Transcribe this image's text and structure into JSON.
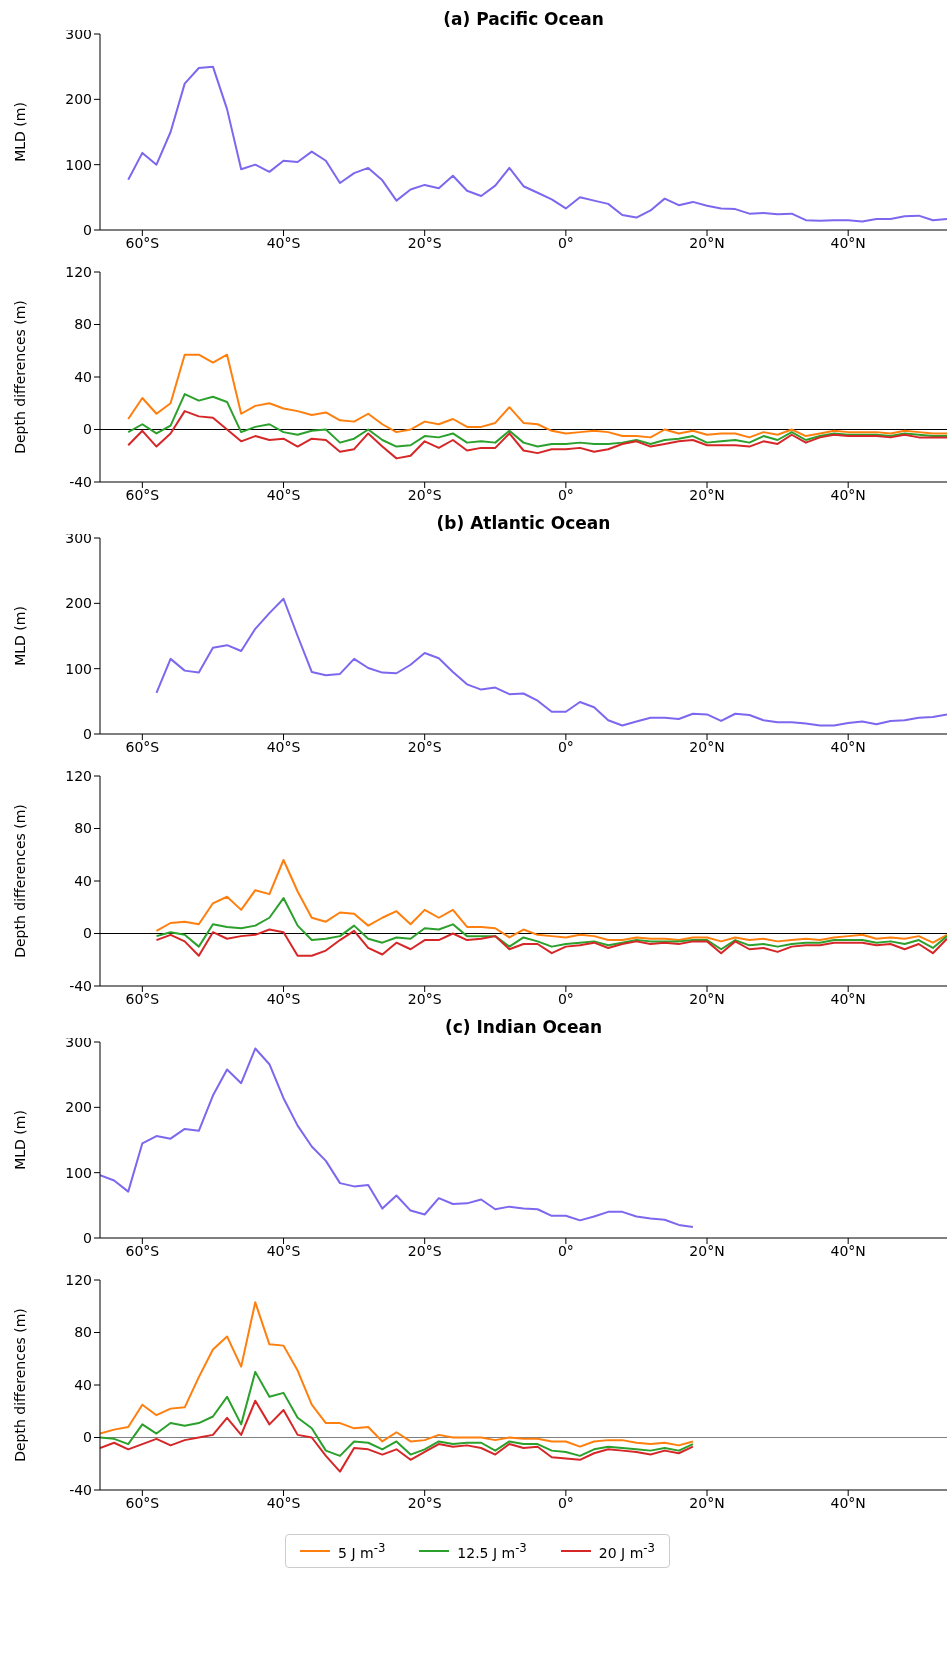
{
  "chart_data": [
    {
      "type": "line",
      "title": "(a) Pacific Ocean",
      "ylabel": "MLD (m)",
      "xlim": [
        -66,
        54
      ],
      "xticks": [
        {
          "value": -60,
          "label": "60°S"
        },
        {
          "value": -40,
          "label": "40°S"
        },
        {
          "value": -20,
          "label": "20°S"
        },
        {
          "value": 0,
          "label": "0°"
        },
        {
          "value": 20,
          "label": "20°N"
        },
        {
          "value": 40,
          "label": "40°N"
        }
      ],
      "ylim": [
        0,
        300
      ],
      "yticks": [
        0,
        100,
        200,
        300
      ],
      "x": [
        -62,
        -60,
        -58,
        -56,
        -54,
        -52,
        -50,
        -48,
        -46,
        -44,
        -42,
        -40,
        -38,
        -36,
        -34,
        -32,
        -30,
        -28,
        -26,
        -24,
        -22,
        -20,
        -18,
        -16,
        -14,
        -12,
        -10,
        -8,
        -6,
        -4,
        -2,
        0,
        2,
        4,
        6,
        8,
        10,
        12,
        14,
        16,
        18,
        20,
        22,
        24,
        26,
        28,
        30,
        32,
        34,
        36,
        38,
        40,
        42,
        44,
        46,
        48,
        50,
        52,
        54
      ],
      "series": [
        {
          "color": "#7b68ee",
          "values": [
            77,
            118,
            100,
            150,
            224,
            248,
            250,
            185,
            93,
            100,
            89,
            106,
            104,
            120,
            106,
            72,
            87,
            95,
            76,
            45,
            62,
            69,
            64,
            83,
            60,
            52,
            68,
            95,
            67,
            57,
            47,
            33,
            50,
            45,
            40,
            23,
            19,
            30,
            48,
            38,
            43,
            37,
            33,
            32,
            25,
            26,
            24,
            25,
            15,
            14,
            15,
            15,
            13,
            17,
            17,
            21,
            22,
            15,
            17
          ]
        }
      ]
    },
    {
      "type": "line",
      "ylabel": "Depth differences (m)",
      "xlim": [
        -66,
        54
      ],
      "xticks": [
        {
          "value": -60,
          "label": "60°S"
        },
        {
          "value": -40,
          "label": "40°S"
        },
        {
          "value": -20,
          "label": "20°S"
        },
        {
          "value": 0,
          "label": "0°"
        },
        {
          "value": 20,
          "label": "20°N"
        },
        {
          "value": 40,
          "label": "40°N"
        }
      ],
      "ylim": [
        -40,
        120
      ],
      "yticks": [
        -40,
        0,
        40,
        80,
        120
      ],
      "ref_lines": [
        {
          "axis": "y",
          "value": 0,
          "color": "#000000"
        }
      ],
      "x": [
        -62,
        -60,
        -58,
        -56,
        -54,
        -52,
        -50,
        -48,
        -46,
        -44,
        -42,
        -40,
        -38,
        -36,
        -34,
        -32,
        -30,
        -28,
        -26,
        -24,
        -22,
        -20,
        -18,
        -16,
        -14,
        -12,
        -10,
        -8,
        -6,
        -4,
        -2,
        0,
        2,
        4,
        6,
        8,
        10,
        12,
        14,
        16,
        18,
        20,
        22,
        24,
        26,
        28,
        30,
        32,
        34,
        36,
        38,
        40,
        42,
        44,
        46,
        48,
        50,
        52,
        54
      ],
      "series": [
        {
          "color": "#ff7f0e",
          "values": [
            8,
            24,
            12,
            20,
            57,
            57,
            51,
            57,
            12,
            18,
            20,
            16,
            14,
            11,
            13,
            7,
            6,
            12,
            4,
            -2,
            0,
            6,
            4,
            8,
            2,
            2,
            5,
            17,
            5,
            4,
            -1,
            -3,
            -2,
            -1,
            -2,
            -5,
            -5,
            -6,
            0,
            -3,
            -1,
            -4,
            -3,
            -3,
            -6,
            -2,
            -4,
            0,
            -5,
            -3,
            -1,
            -2,
            -2,
            -2,
            -3,
            -1,
            -2,
            -3,
            -3
          ]
        },
        {
          "color": "#2ca02c",
          "values": [
            -2,
            4,
            -3,
            3,
            27,
            22,
            25,
            21,
            -2,
            2,
            4,
            -2,
            -4,
            -1,
            0,
            -10,
            -7,
            0,
            -8,
            -13,
            -12,
            -5,
            -6,
            -3,
            -10,
            -9,
            -10,
            -1,
            -10,
            -13,
            -11,
            -11,
            -10,
            -11,
            -11,
            -10,
            -8,
            -11,
            -8,
            -7,
            -5,
            -10,
            -9,
            -8,
            -10,
            -5,
            -8,
            -2,
            -8,
            -5,
            -3,
            -4,
            -4,
            -4,
            -5,
            -3,
            -4,
            -5,
            -5
          ]
        },
        {
          "color": "#d62728",
          "values": [
            -12,
            -1,
            -13,
            -3,
            14,
            10,
            9,
            0,
            -9,
            -5,
            -8,
            -7,
            -13,
            -7,
            -8,
            -17,
            -15,
            -3,
            -13,
            -22,
            -20,
            -9,
            -14,
            -8,
            -16,
            -14,
            -14,
            -3,
            -16,
            -18,
            -15,
            -15,
            -14,
            -17,
            -15,
            -11,
            -9,
            -13,
            -11,
            -9,
            -8,
            -12,
            -12,
            -12,
            -13,
            -9,
            -11,
            -4,
            -10,
            -6,
            -4,
            -5,
            -5,
            -5,
            -6,
            -4,
            -6,
            -6,
            -6
          ]
        }
      ]
    },
    {
      "type": "line",
      "title": "(b) Atlantic Ocean",
      "ylabel": "MLD (m)",
      "xlim": [
        -66,
        54
      ],
      "xticks": [
        {
          "value": -60,
          "label": "60°S"
        },
        {
          "value": -40,
          "label": "40°S"
        },
        {
          "value": -20,
          "label": "20°S"
        },
        {
          "value": 0,
          "label": "0°"
        },
        {
          "value": 20,
          "label": "20°N"
        },
        {
          "value": 40,
          "label": "40°N"
        }
      ],
      "ylim": [
        0,
        300
      ],
      "yticks": [
        0,
        100,
        200,
        300
      ],
      "x": [
        -58,
        -56,
        -54,
        -52,
        -50,
        -48,
        -46,
        -44,
        -42,
        -40,
        -38,
        -36,
        -34,
        -32,
        -30,
        -28,
        -26,
        -24,
        -22,
        -20,
        -18,
        -16,
        -14,
        -12,
        -10,
        -8,
        -6,
        -4,
        -2,
        0,
        2,
        4,
        6,
        8,
        10,
        12,
        14,
        16,
        18,
        20,
        22,
        24,
        26,
        28,
        30,
        32,
        34,
        36,
        38,
        40,
        42,
        44,
        46,
        48,
        50,
        52,
        54
      ],
      "series": [
        {
          "color": "#7b68ee",
          "values": [
            63,
            115,
            97,
            94,
            132,
            136,
            127,
            161,
            185,
            207,
            150,
            95,
            90,
            92,
            115,
            101,
            94,
            93,
            106,
            124,
            116,
            95,
            76,
            68,
            71,
            61,
            62,
            51,
            34,
            34,
            49,
            41,
            21,
            13,
            19,
            25,
            25,
            23,
            31,
            30,
            20,
            31,
            29,
            21,
            18,
            18,
            16,
            13,
            13,
            17,
            19,
            15,
            20,
            21,
            25,
            26,
            30
          ]
        }
      ]
    },
    {
      "type": "line",
      "ylabel": "Depth differences (m)",
      "xlim": [
        -66,
        54
      ],
      "xticks": [
        {
          "value": -60,
          "label": "60°S"
        },
        {
          "value": -40,
          "label": "40°S"
        },
        {
          "value": -20,
          "label": "20°S"
        },
        {
          "value": 0,
          "label": "0°"
        },
        {
          "value": 20,
          "label": "20°N"
        },
        {
          "value": 40,
          "label": "40°N"
        }
      ],
      "ylim": [
        -40,
        120
      ],
      "yticks": [
        -40,
        0,
        40,
        80,
        120
      ],
      "ref_lines": [
        {
          "axis": "y",
          "value": 0,
          "color": "#000000"
        }
      ],
      "x": [
        -58,
        -56,
        -54,
        -52,
        -50,
        -48,
        -46,
        -44,
        -42,
        -40,
        -38,
        -36,
        -34,
        -32,
        -30,
        -28,
        -26,
        -24,
        -22,
        -20,
        -18,
        -16,
        -14,
        -12,
        -10,
        -8,
        -6,
        -4,
        -2,
        0,
        2,
        4,
        6,
        8,
        10,
        12,
        14,
        16,
        18,
        20,
        22,
        24,
        26,
        28,
        30,
        32,
        34,
        36,
        38,
        40,
        42,
        44,
        46,
        48,
        50,
        52,
        54
      ],
      "series": [
        {
          "color": "#ff7f0e",
          "values": [
            2,
            8,
            9,
            7,
            23,
            28,
            18,
            33,
            30,
            56,
            32,
            12,
            9,
            16,
            15,
            6,
            12,
            17,
            7,
            18,
            12,
            18,
            5,
            5,
            4,
            -3,
            3,
            -1,
            -2,
            -3,
            -1,
            -2,
            -5,
            -5,
            -3,
            -4,
            -4,
            -5,
            -3,
            -3,
            -6,
            -3,
            -5,
            -4,
            -6,
            -5,
            -4,
            -5,
            -3,
            -2,
            -1,
            -4,
            -3,
            -4,
            -2,
            -7,
            -1
          ]
        },
        {
          "color": "#2ca02c",
          "values": [
            -2,
            1,
            -1,
            -10,
            7,
            5,
            4,
            6,
            12,
            27,
            6,
            -5,
            -4,
            -2,
            6,
            -4,
            -7,
            -3,
            -4,
            4,
            3,
            7,
            -2,
            -2,
            -2,
            -10,
            -3,
            -6,
            -10,
            -8,
            -7,
            -6,
            -9,
            -7,
            -5,
            -6,
            -6,
            -6,
            -5,
            -5,
            -12,
            -5,
            -9,
            -8,
            -10,
            -8,
            -7,
            -7,
            -5,
            -5,
            -5,
            -7,
            -6,
            -8,
            -5,
            -11,
            -2
          ]
        },
        {
          "color": "#d62728",
          "values": [
            -5,
            -1,
            -6,
            -17,
            1,
            -4,
            -2,
            -1,
            3,
            1,
            -17,
            -17,
            -13,
            -5,
            2,
            -11,
            -16,
            -7,
            -12,
            -5,
            -5,
            0,
            -5,
            -4,
            -2,
            -12,
            -8,
            -8,
            -15,
            -10,
            -9,
            -7,
            -11,
            -8,
            -6,
            -8,
            -7,
            -8,
            -6,
            -6,
            -15,
            -6,
            -12,
            -11,
            -14,
            -10,
            -9,
            -9,
            -7,
            -7,
            -7,
            -9,
            -8,
            -12,
            -8,
            -15,
            -4
          ]
        }
      ]
    },
    {
      "type": "line",
      "title": "(c) Indian Ocean",
      "ylabel": "MLD (m)",
      "xlim": [
        -66,
        54
      ],
      "xticks": [
        {
          "value": -60,
          "label": "60°S"
        },
        {
          "value": -40,
          "label": "40°S"
        },
        {
          "value": -20,
          "label": "20°S"
        },
        {
          "value": 0,
          "label": "0°"
        },
        {
          "value": 20,
          "label": "20°N"
        },
        {
          "value": 40,
          "label": "40°N"
        }
      ],
      "ylim": [
        0,
        300
      ],
      "yticks": [
        0,
        100,
        200,
        300
      ],
      "x": [
        -66,
        -64,
        -62,
        -60,
        -58,
        -56,
        -54,
        -52,
        -50,
        -48,
        -46,
        -44,
        -42,
        -40,
        -38,
        -36,
        -34,
        -32,
        -30,
        -28,
        -26,
        -24,
        -22,
        -20,
        -18,
        -16,
        -14,
        -12,
        -10,
        -8,
        -6,
        -4,
        -2,
        0,
        2,
        4,
        6,
        8,
        10,
        12,
        14,
        16,
        18
      ],
      "series": [
        {
          "color": "#7b68ee",
          "values": [
            96,
            88,
            71,
            145,
            156,
            152,
            167,
            164,
            218,
            258,
            237,
            290,
            266,
            214,
            172,
            140,
            118,
            84,
            79,
            81,
            45,
            65,
            42,
            36,
            61,
            52,
            53,
            59,
            44,
            48,
            45,
            44,
            34,
            34,
            27,
            33,
            40,
            40,
            33,
            30,
            28,
            20,
            17
          ]
        }
      ]
    },
    {
      "type": "line",
      "ylabel": "Depth differences (m)",
      "xlim": [
        -66,
        54
      ],
      "xticks": [
        {
          "value": -60,
          "label": "60°S"
        },
        {
          "value": -40,
          "label": "40°S"
        },
        {
          "value": -20,
          "label": "20°S"
        },
        {
          "value": 0,
          "label": "0°"
        },
        {
          "value": 20,
          "label": "20°N"
        },
        {
          "value": 40,
          "label": "40°N"
        }
      ],
      "ylim": [
        -40,
        120
      ],
      "yticks": [
        -40,
        0,
        40,
        80,
        120
      ],
      "ref_lines": [
        {
          "axis": "y",
          "value": 0,
          "color": "#808080"
        }
      ],
      "legend": "bottom",
      "x": [
        -66,
        -64,
        -62,
        -60,
        -58,
        -56,
        -54,
        -52,
        -50,
        -48,
        -46,
        -44,
        -42,
        -40,
        -38,
        -36,
        -34,
        -32,
        -30,
        -28,
        -26,
        -24,
        -22,
        -20,
        -18,
        -16,
        -14,
        -12,
        -10,
        -8,
        -6,
        -4,
        -2,
        0,
        2,
        4,
        6,
        8,
        10,
        12,
        14,
        16,
        18
      ],
      "series": [
        {
          "name": "5 J m$^{-3}$",
          "color": "#ff7f0e",
          "values": [
            3,
            6,
            8,
            25,
            17,
            22,
            23,
            46,
            67,
            77,
            54,
            103,
            71,
            70,
            51,
            25,
            11,
            11,
            7,
            8,
            -3,
            4,
            -3,
            -2,
            2,
            0,
            0,
            0,
            -2,
            0,
            -1,
            -1,
            -3,
            -3,
            -7,
            -3,
            -2,
            -2,
            -4,
            -5,
            -4,
            -6,
            -3
          ]
        },
        {
          "name": "12.5 J m$^{-3}$",
          "color": "#2ca02c",
          "values": [
            0,
            -1,
            -5,
            10,
            3,
            11,
            9,
            11,
            16,
            31,
            10,
            50,
            31,
            34,
            15,
            7,
            -10,
            -14,
            -3,
            -4,
            -9,
            -3,
            -13,
            -9,
            -3,
            -5,
            -4,
            -4,
            -10,
            -3,
            -5,
            -5,
            -10,
            -11,
            -14,
            -9,
            -7,
            -8,
            -9,
            -10,
            -8,
            -10,
            -5
          ]
        },
        {
          "name": "20 J m$^{-3}$",
          "color": "#d62728",
          "values": [
            -8,
            -4,
            -9,
            -5,
            -1,
            -6,
            -2,
            0,
            2,
            15,
            2,
            28,
            10,
            21,
            2,
            0,
            -14,
            -26,
            -8,
            -9,
            -13,
            -9,
            -17,
            -11,
            -5,
            -7,
            -6,
            -8,
            -13,
            -5,
            -8,
            -7,
            -15,
            -16,
            -17,
            -12,
            -9,
            -10,
            -11,
            -13,
            -10,
            -12,
            -7
          ]
        }
      ]
    }
  ]
}
